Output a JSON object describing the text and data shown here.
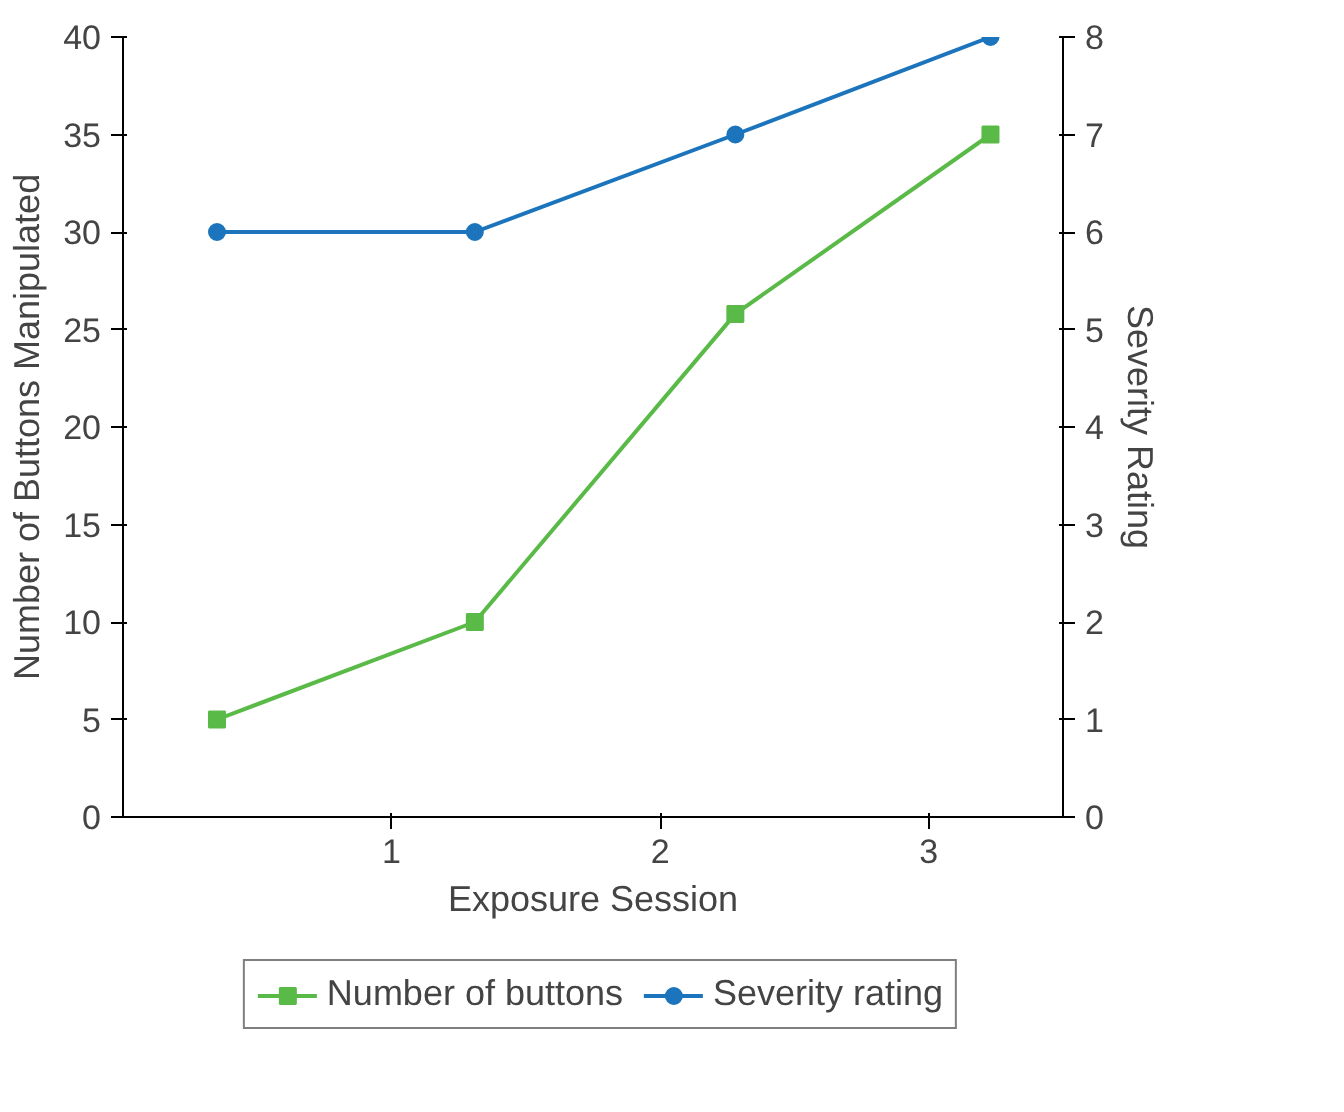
{
  "chart_data": {
    "type": "line",
    "xlabel": "Exposure Session",
    "ylabel": "Number of Buttons Manipulated",
    "y2label": "Severity Rating",
    "x": [
      0.35,
      1.31,
      2.28,
      3.23
    ],
    "xlim": [
      0,
      3.5
    ],
    "xticks": [
      1,
      2,
      3
    ],
    "ylim": [
      0,
      40
    ],
    "yticks": [
      0,
      5,
      10,
      15,
      20,
      25,
      30,
      35,
      40
    ],
    "y2lim": [
      0,
      8
    ],
    "y2ticks": [
      0,
      1,
      2,
      3,
      4,
      5,
      6,
      7,
      8
    ],
    "series": [
      {
        "name": "Number of buttons",
        "color": "#5aba47",
        "values": [
          5,
          10,
          25.8,
          35
        ],
        "marker": "square"
      },
      {
        "name": "Severity rating",
        "color": "#1c75bc",
        "values": [
          6,
          6,
          7,
          8
        ],
        "axis": "y2",
        "marker": "circle"
      }
    ],
    "grid": false,
    "legend": "bottom",
    "line_style": "solid"
  }
}
